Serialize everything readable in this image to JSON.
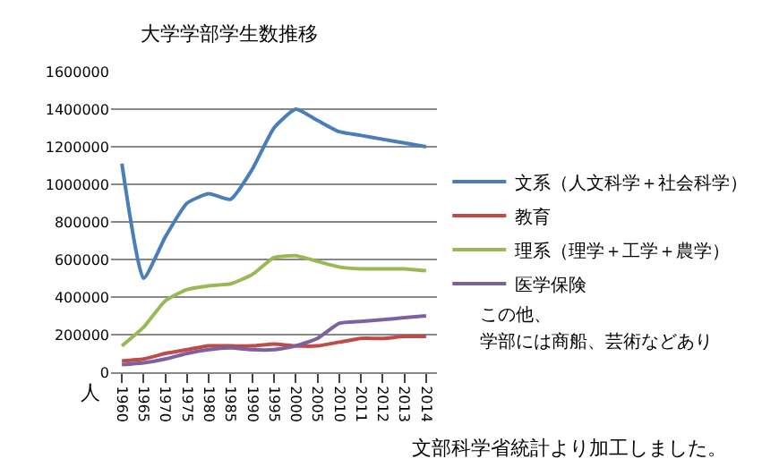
{
  "chart_data": {
    "type": "line",
    "title": "大学学部学生数推移",
    "ylabel": "人",
    "categories": [
      "1960",
      "1965",
      "1970",
      "1975",
      "1980",
      "1985",
      "1990",
      "1995",
      "2000",
      "2005",
      "2010",
      "2011",
      "2012",
      "2013",
      "2014"
    ],
    "series": [
      {
        "name": "文系（人文科学＋社会科学）",
        "color": "#4a7ebb",
        "values": [
          1110000,
          500000,
          720000,
          900000,
          950000,
          920000,
          1080000,
          1300000,
          1400000,
          1340000,
          1280000,
          1260000,
          1240000,
          1220000,
          1200000
        ]
      },
      {
        "name": "教育",
        "color": "#be4b48",
        "values": [
          60000,
          70000,
          100000,
          120000,
          140000,
          140000,
          140000,
          150000,
          140000,
          140000,
          160000,
          180000,
          180000,
          190000,
          190000
        ]
      },
      {
        "name": "理系（理学＋工学＋農学）",
        "color": "#98b954",
        "values": [
          140000,
          240000,
          380000,
          440000,
          460000,
          470000,
          520000,
          610000,
          620000,
          590000,
          560000,
          550000,
          550000,
          550000,
          540000
        ]
      },
      {
        "name": "医学保険",
        "color": "#7d60a0",
        "values": [
          40000,
          50000,
          70000,
          100000,
          120000,
          130000,
          120000,
          120000,
          140000,
          180000,
          260000,
          270000,
          280000,
          290000,
          300000
        ]
      }
    ],
    "ylim": [
      0,
      1600000
    ],
    "yticks": [
      0,
      200000,
      400000,
      600000,
      800000,
      1000000,
      1200000,
      1400000,
      1600000
    ],
    "grid": "y",
    "legend": "right",
    "marker": "none",
    "line_style": "solid",
    "annotations": [
      "この他、",
      "学部には商船、芸術などあり",
      "文部科学省統計より加工しました。"
    ]
  }
}
